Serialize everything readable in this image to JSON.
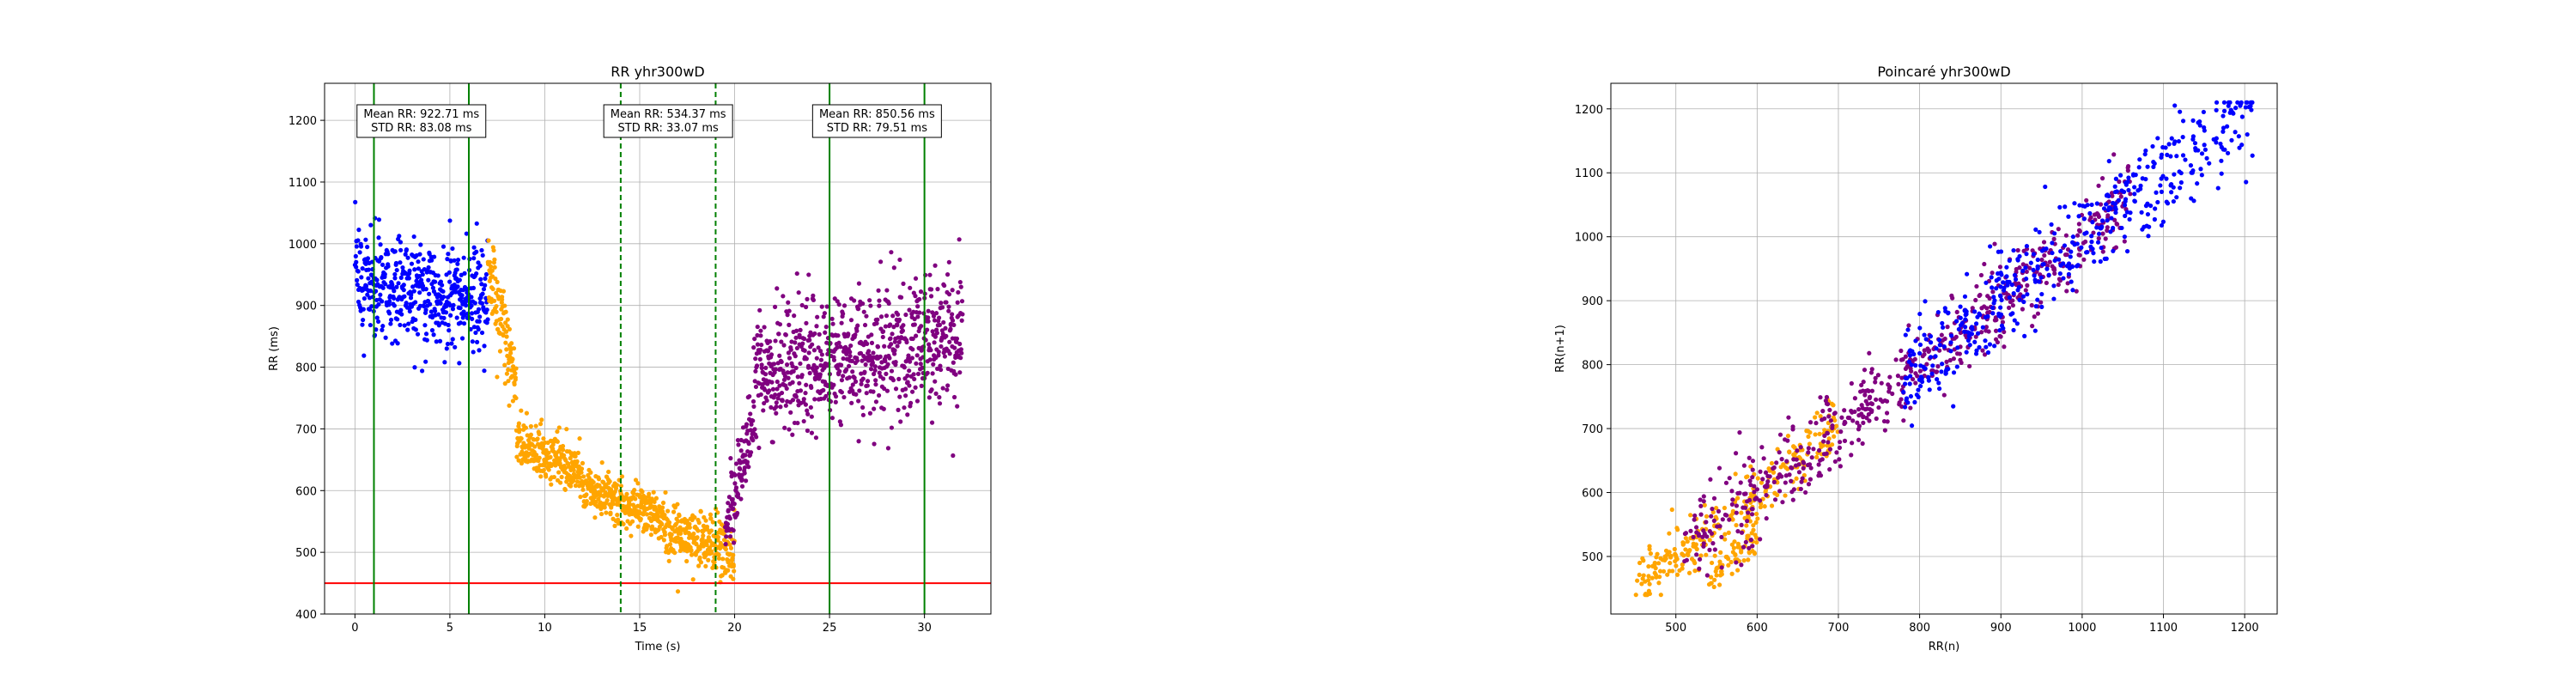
{
  "chart_data": [
    {
      "type": "scatter",
      "title": "RR yhr300wD",
      "xlabel": "Time (s)",
      "ylabel": "RR (ms)",
      "xlim": [
        -1.6,
        33.5
      ],
      "ylim": [
        400,
        1260
      ],
      "xticks": [
        "0",
        "5",
        "10",
        "15",
        "20",
        "25",
        "30"
      ],
      "yticks": [
        "400",
        "500",
        "600",
        "700",
        "800",
        "900",
        "1000",
        "1100",
        "1200"
      ],
      "grid": true,
      "colors": {
        "blue": "#0000ff",
        "orange": "#ffa500",
        "purple": "#800080",
        "threshold": "#ff0000",
        "window": "#008000"
      },
      "threshold_ms": 450,
      "windows": [
        {
          "start": 1,
          "end": 6,
          "style": "solid",
          "line1": "Mean RR: 922.71 ms",
          "line2": "STD RR: 83.08 ms"
        },
        {
          "start": 14,
          "end": 19,
          "style": "dashed",
          "line1": "Mean RR: 534.37 ms",
          "line2": "STD RR: 33.07 ms"
        },
        {
          "start": 25,
          "end": 30,
          "style": "solid",
          "line1": "Mean RR: 850.56 ms",
          "line2": "STD RR: 79.51 ms"
        }
      ],
      "series": [
        {
          "color": "blue",
          "t_start": 0,
          "t_end": 7,
          "mean_start": 940,
          "mean_end": 905,
          "spread": 75
        },
        {
          "color": "orange",
          "t_start": 7,
          "t_end": 8.5,
          "mean_start": 950,
          "mean_end": 780,
          "spread": 55
        },
        {
          "color": "orange",
          "t_start": 8.5,
          "t_end": 12,
          "mean_start": 680,
          "mean_end": 630,
          "spread": 35
        },
        {
          "color": "orange",
          "t_start": 12,
          "t_end": 16,
          "mean_start": 600,
          "mean_end": 560,
          "spread": 30
        },
        {
          "color": "orange",
          "t_start": 16,
          "t_end": 20,
          "mean_start": 540,
          "mean_end": 500,
          "spread": 35
        },
        {
          "color": "purple",
          "t_start": 19.5,
          "t_end": 21,
          "mean_start": 520,
          "mean_end": 720,
          "spread": 50
        },
        {
          "color": "purple",
          "t_start": 21,
          "t_end": 32,
          "mean_start": 790,
          "mean_end": 850,
          "spread": 90
        }
      ]
    },
    {
      "type": "scatter",
      "title": "Poincaré yhr300wD",
      "xlabel": "RR(n)",
      "ylabel": "RR(n+1)",
      "xlim": [
        420,
        1240
      ],
      "ylim": [
        410,
        1240
      ],
      "xticks": [
        "500",
        "600",
        "700",
        "800",
        "900",
        "1000",
        "1100",
        "1200"
      ],
      "yticks": [
        "500",
        "600",
        "700",
        "800",
        "900",
        "1000",
        "1100",
        "1200"
      ],
      "grid": true,
      "clusters": [
        {
          "color": "orange",
          "x_min": 450,
          "x_max": 700,
          "spread": 22
        },
        {
          "color": "orange",
          "x_min": 540,
          "x_max": 600,
          "y_offset": -70,
          "spread": 15
        },
        {
          "color": "purple",
          "x_min": 510,
          "x_max": 1060,
          "spread": 32
        },
        {
          "color": "blue",
          "x_min": 780,
          "x_max": 1210,
          "spread": 38
        }
      ]
    }
  ]
}
